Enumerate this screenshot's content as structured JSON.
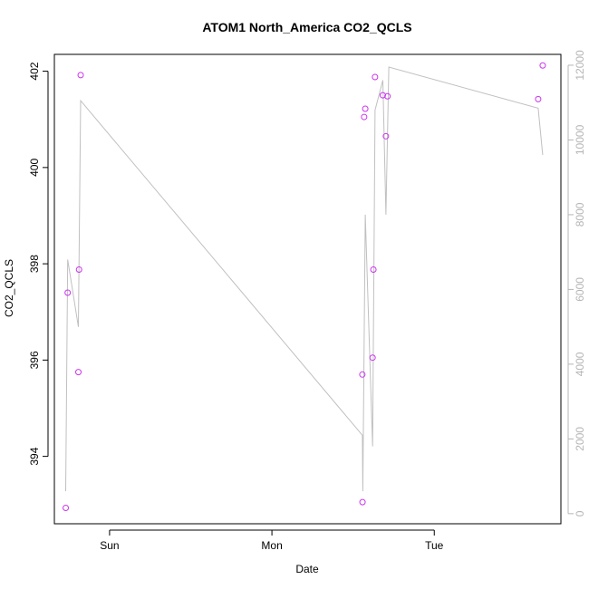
{
  "chart_data": {
    "type": "scatter",
    "title": "ATOM1 North_America CO2_QCLS",
    "xlabel": "Date",
    "ylabel": "CO2_QCLS",
    "x_ticks": [
      {
        "x": 1.0,
        "label": "Sun"
      },
      {
        "x": 2.0,
        "label": "Mon"
      },
      {
        "x": 3.0,
        "label": "Tue"
      }
    ],
    "xlim": [
      0.66,
      3.78
    ],
    "y_ticks": [
      394,
      396,
      398,
      400,
      402
    ],
    "ylim": [
      392.6,
      402.35
    ],
    "y2_ticks": [
      0,
      2000,
      4000,
      6000,
      8000,
      10000,
      12000
    ],
    "y2lim": [
      -270,
      12290
    ],
    "point_color": "#cc33ee",
    "line_color": "#c0c0c0",
    "secondary_axis_color": "#b5b5b5",
    "points": [
      {
        "x": 0.73,
        "y": 392.93
      },
      {
        "x": 0.742,
        "y": 397.4
      },
      {
        "x": 0.808,
        "y": 395.75
      },
      {
        "x": 0.812,
        "y": 397.88
      },
      {
        "x": 0.822,
        "y": 401.92
      },
      {
        "x": 2.557,
        "y": 395.7
      },
      {
        "x": 2.558,
        "y": 393.05
      },
      {
        "x": 2.568,
        "y": 401.05
      },
      {
        "x": 2.575,
        "y": 401.22
      },
      {
        "x": 2.62,
        "y": 396.05
      },
      {
        "x": 2.625,
        "y": 397.88
      },
      {
        "x": 2.635,
        "y": 401.88
      },
      {
        "x": 2.683,
        "y": 401.5
      },
      {
        "x": 2.702,
        "y": 400.65
      },
      {
        "x": 2.712,
        "y": 401.48
      },
      {
        "x": 3.64,
        "y": 401.42
      },
      {
        "x": 3.668,
        "y": 402.12
      }
    ],
    "line": [
      {
        "x": 0.73,
        "y2": 600
      },
      {
        "x": 0.742,
        "y2": 6800
      },
      {
        "x": 0.808,
        "y2": 5000
      },
      {
        "x": 0.822,
        "y2": 11050
      },
      {
        "x": 2.557,
        "y2": 2100
      },
      {
        "x": 2.56,
        "y2": 600
      },
      {
        "x": 2.575,
        "y2": 8000
      },
      {
        "x": 2.62,
        "y2": 1800
      },
      {
        "x": 2.635,
        "y2": 10800
      },
      {
        "x": 2.683,
        "y2": 11600
      },
      {
        "x": 2.702,
        "y2": 8000
      },
      {
        "x": 2.72,
        "y2": 11950
      },
      {
        "x": 3.64,
        "y2": 10850
      },
      {
        "x": 3.668,
        "y2": 9600
      }
    ]
  }
}
